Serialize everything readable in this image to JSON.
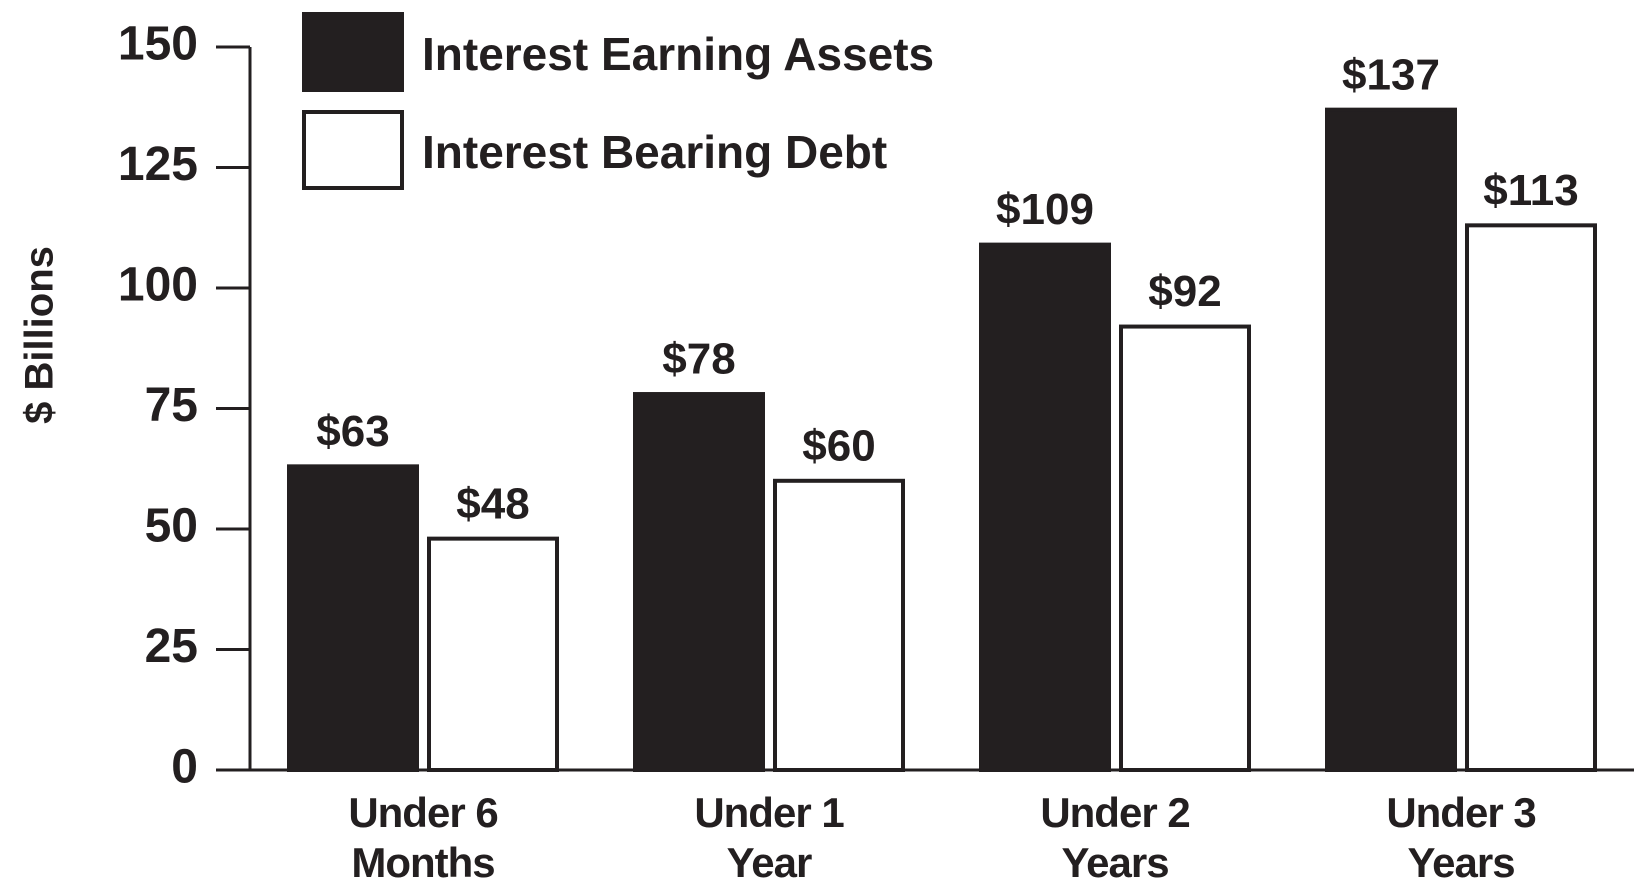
{
  "chart_data": {
    "type": "bar",
    "y_label": "$ Billions",
    "categories": [
      "Under 6 Months",
      "Under 1 Year",
      "Under 2 Years",
      "Under 3 Years"
    ],
    "series": [
      {
        "name": "Interest Earning Assets",
        "color": "#231f20",
        "values": [
          63,
          78,
          109,
          137
        ],
        "value_labels": [
          "$63",
          "$78",
          "$109",
          "$137"
        ]
      },
      {
        "name": "Interest Bearing Debt",
        "color": "#ffffff",
        "values": [
          48,
          60,
          92,
          113
        ],
        "value_labels": [
          "$48",
          "$60",
          "$92",
          "$113"
        ]
      }
    ],
    "ylim": [
      0,
      150
    ],
    "yticks": [
      0,
      25,
      50,
      75,
      100,
      125,
      150
    ],
    "grid": false,
    "legend": "top-left"
  }
}
